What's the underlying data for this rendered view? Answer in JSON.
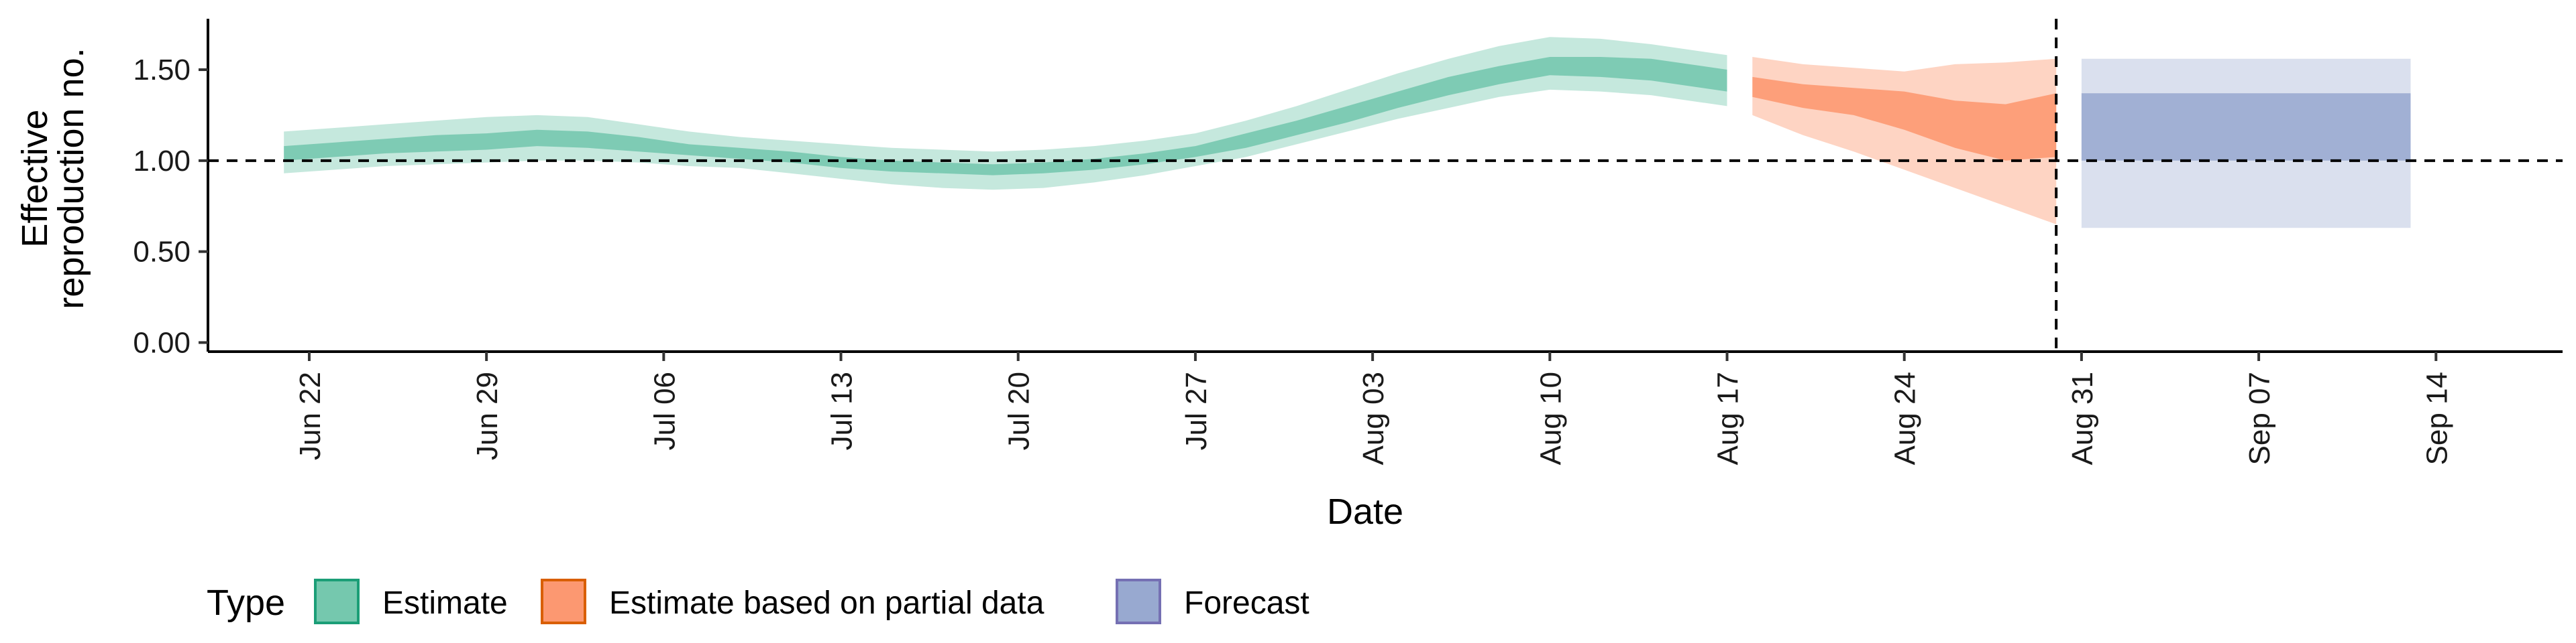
{
  "chart_data": {
    "type": "area",
    "xlabel": "Date",
    "ylabel_lines": [
      "Effective",
      "reproduction no."
    ],
    "ylim": [
      -0.05,
      1.78
    ],
    "xlim": [
      "2020-06-18",
      "2020-09-19"
    ],
    "x_ticks": [
      "2020-06-22",
      "2020-06-29",
      "2020-07-06",
      "2020-07-13",
      "2020-07-20",
      "2020-07-27",
      "2020-08-03",
      "2020-08-10",
      "2020-08-17",
      "2020-08-24",
      "2020-08-31",
      "2020-09-07",
      "2020-09-14"
    ],
    "x_tick_labels": [
      "Jun 22",
      "Jun 29",
      "Jul 06",
      "Jul 13",
      "Jul 20",
      "Jul 27",
      "Aug 03",
      "Aug 10",
      "Aug 17",
      "Aug 24",
      "Aug 31",
      "Sep 07",
      "Sep 14"
    ],
    "y_ticks": [
      0.0,
      0.5,
      1.0,
      1.5
    ],
    "y_tick_labels": [
      "0.00",
      "0.50",
      "1.00",
      "1.50"
    ],
    "reference_hline": 1.0,
    "reference_vline": "2020-08-30",
    "grid": false,
    "legend": {
      "title": "Type",
      "position": "bottom-left",
      "entries": [
        "Estimate",
        "Estimate based on partial data",
        "Forecast"
      ]
    },
    "series": [
      {
        "name": "Estimate",
        "color_fill": "#66c2a5",
        "color_outline": "#1b9e77",
        "x": [
          "2020-06-21",
          "2020-06-23",
          "2020-06-25",
          "2020-06-27",
          "2020-06-29",
          "2020-07-01",
          "2020-07-03",
          "2020-07-05",
          "2020-07-07",
          "2020-07-09",
          "2020-07-11",
          "2020-07-13",
          "2020-07-15",
          "2020-07-17",
          "2020-07-19",
          "2020-07-21",
          "2020-07-23",
          "2020-07-25",
          "2020-07-27",
          "2020-07-29",
          "2020-07-31",
          "2020-08-02",
          "2020-08-04",
          "2020-08-06",
          "2020-08-08",
          "2020-08-10",
          "2020-08-12",
          "2020-08-14",
          "2020-08-17"
        ],
        "median": [
          1.04,
          1.06,
          1.08,
          1.1,
          1.11,
          1.13,
          1.12,
          1.09,
          1.06,
          1.04,
          1.02,
          0.99,
          0.97,
          0.96,
          0.95,
          0.96,
          0.98,
          1.01,
          1.05,
          1.11,
          1.18,
          1.25,
          1.33,
          1.41,
          1.47,
          1.53,
          1.52,
          1.5,
          1.44
        ],
        "lower50": [
          1.0,
          1.02,
          1.04,
          1.05,
          1.06,
          1.08,
          1.07,
          1.05,
          1.03,
          1.01,
          0.99,
          0.96,
          0.94,
          0.93,
          0.92,
          0.93,
          0.95,
          0.98,
          1.02,
          1.07,
          1.14,
          1.21,
          1.29,
          1.36,
          1.42,
          1.47,
          1.46,
          1.44,
          1.38
        ],
        "upper50": [
          1.08,
          1.1,
          1.12,
          1.14,
          1.15,
          1.17,
          1.16,
          1.13,
          1.09,
          1.07,
          1.05,
          1.02,
          1.0,
          0.99,
          0.98,
          0.99,
          1.01,
          1.04,
          1.08,
          1.15,
          1.22,
          1.3,
          1.38,
          1.46,
          1.52,
          1.57,
          1.57,
          1.56,
          1.5
        ],
        "lower90": [
          0.93,
          0.95,
          0.97,
          0.98,
          0.99,
          1.0,
          1.0,
          0.99,
          0.97,
          0.96,
          0.93,
          0.9,
          0.87,
          0.85,
          0.84,
          0.85,
          0.88,
          0.92,
          0.97,
          1.02,
          1.09,
          1.16,
          1.23,
          1.29,
          1.35,
          1.39,
          1.38,
          1.36,
          1.3
        ],
        "upper90": [
          1.16,
          1.18,
          1.2,
          1.22,
          1.24,
          1.25,
          1.24,
          1.2,
          1.16,
          1.13,
          1.11,
          1.09,
          1.07,
          1.06,
          1.05,
          1.06,
          1.08,
          1.11,
          1.15,
          1.22,
          1.3,
          1.39,
          1.48,
          1.56,
          1.63,
          1.68,
          1.67,
          1.64,
          1.58
        ]
      },
      {
        "name": "Estimate based on partial data",
        "color_fill": "#fc8d62",
        "color_outline": "#d95f02",
        "x": [
          "2020-08-18",
          "2020-08-20",
          "2020-08-22",
          "2020-08-24",
          "2020-08-26",
          "2020-08-28",
          "2020-08-30"
        ],
        "median": [
          1.41,
          1.36,
          1.33,
          1.28,
          1.2,
          1.15,
          1.22
        ],
        "lower50": [
          1.35,
          1.29,
          1.25,
          1.17,
          1.07,
          1.0,
          1.02
        ],
        "upper50": [
          1.46,
          1.42,
          1.4,
          1.38,
          1.33,
          1.31,
          1.37
        ],
        "lower90": [
          1.25,
          1.14,
          1.05,
          0.95,
          0.85,
          0.75,
          0.65
        ],
        "upper90": [
          1.57,
          1.53,
          1.51,
          1.49,
          1.53,
          1.54,
          1.56
        ]
      },
      {
        "name": "Forecast",
        "color_fill": "#8da0cb",
        "color_outline": "#7570b3",
        "x": [
          "2020-08-31",
          "2020-09-13"
        ],
        "median": [
          1.18,
          1.18
        ],
        "lower50": [
          1.0,
          1.0
        ],
        "upper50": [
          1.37,
          1.37
        ],
        "lower90": [
          0.63,
          0.63
        ],
        "upper90": [
          1.56,
          1.56
        ]
      }
    ]
  }
}
